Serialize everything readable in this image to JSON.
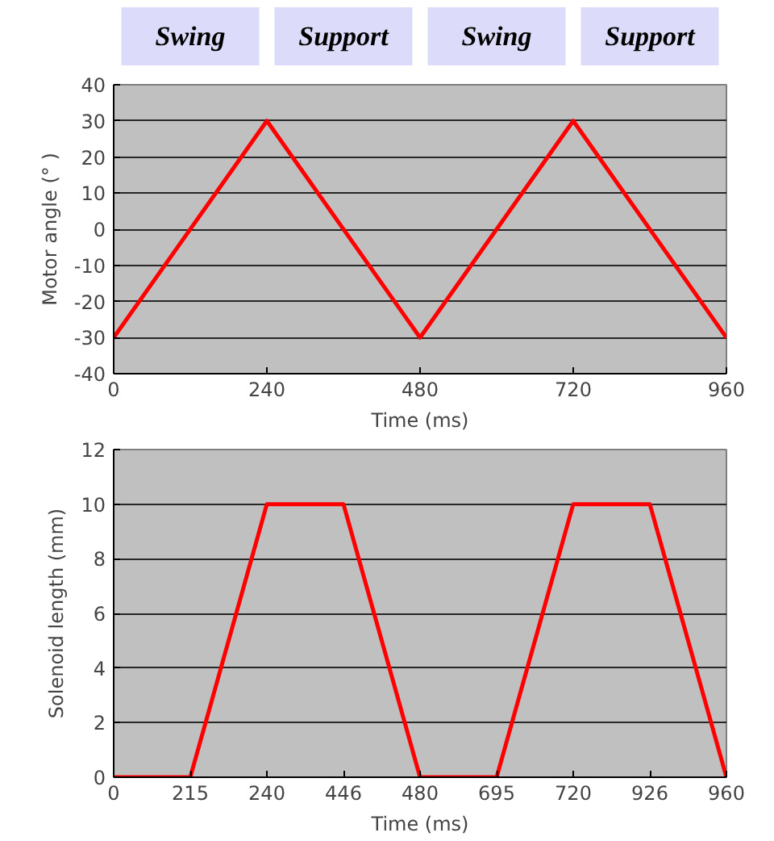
{
  "chart_data": [
    {
      "type": "line",
      "annotations": [
        "Swing",
        "Support",
        "Swing",
        "Support"
      ],
      "xlabel": "Time (ms)",
      "ylabel": "Motor angle (° )",
      "x": [
        0,
        240,
        480,
        720,
        960
      ],
      "series": [
        {
          "color": "#ff0000",
          "values": [
            -30,
            30,
            -30,
            30,
            -30
          ]
        }
      ],
      "xlim": [
        0,
        960
      ],
      "xticks": [
        0,
        240,
        480,
        720,
        960
      ],
      "ylim": [
        -40,
        40
      ],
      "yticks": [
        -40,
        -30,
        -20,
        -10,
        0,
        10,
        20,
        30,
        40
      ],
      "grid": "y"
    },
    {
      "type": "line",
      "xlabel": "Time (ms)",
      "ylabel": "Solenoid length (mm)",
      "categories": [
        "0",
        "215",
        "240",
        "446",
        "480",
        "695",
        "720",
        "926",
        "960"
      ],
      "series": [
        {
          "color": "#ff0000",
          "values": [
            0,
            0,
            10,
            10,
            0,
            0,
            10,
            10,
            0
          ]
        }
      ],
      "ylim": [
        0,
        12
      ],
      "yticks": [
        0,
        2,
        4,
        6,
        8,
        10,
        12
      ],
      "grid": "y"
    }
  ]
}
